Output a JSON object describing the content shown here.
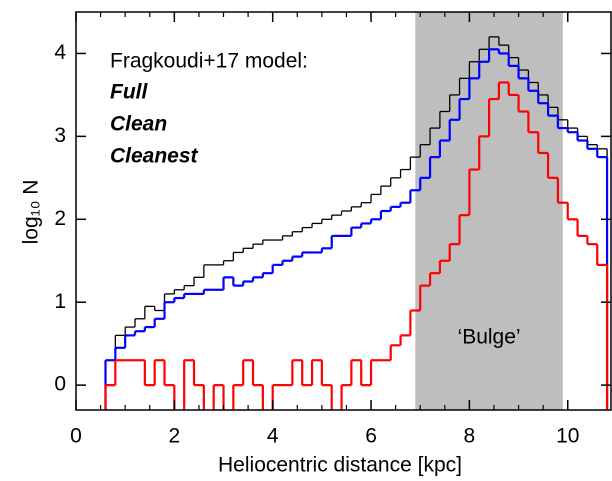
{
  "chart_data": {
    "type": "histogram",
    "x_label": "Heliocentric distance [kpc]",
    "y_label": "log₁₀ N",
    "legend_title": "Fragkoudi+17 model:",
    "legend": "upper left",
    "bins": [
      0.6,
      0.8,
      1.0,
      1.2,
      1.4,
      1.6,
      1.8,
      2.0,
      2.2,
      2.4,
      2.6,
      2.8,
      3.0,
      3.2,
      3.4,
      3.6,
      3.8,
      4.0,
      4.2,
      4.4,
      4.6,
      4.8,
      5.0,
      5.2,
      5.4,
      5.6,
      5.8,
      6.0,
      6.2,
      6.4,
      6.6,
      6.8,
      7.0,
      7.2,
      7.4,
      7.6,
      7.8,
      8.0,
      8.2,
      8.4,
      8.6,
      8.8,
      9.0,
      9.2,
      9.4,
      9.6,
      9.8,
      10.0,
      10.2,
      10.4,
      10.6,
      10.8
    ],
    "series": [
      {
        "name": "Full",
        "color": "#000000",
        "values": [
          0.3,
          0.6,
          0.7,
          0.8,
          0.95,
          0.9,
          1.1,
          1.15,
          1.2,
          1.3,
          1.45,
          1.45,
          1.5,
          1.6,
          1.65,
          1.7,
          1.75,
          1.75,
          1.8,
          1.85,
          1.9,
          1.95,
          2.0,
          2.05,
          2.1,
          2.15,
          2.2,
          2.3,
          2.4,
          2.5,
          2.6,
          2.75,
          2.9,
          3.1,
          3.3,
          3.5,
          3.7,
          3.9,
          4.05,
          4.2,
          4.1,
          3.95,
          3.8,
          3.65,
          3.5,
          3.35,
          3.2,
          3.1,
          3.0,
          2.9,
          2.85
        ]
      },
      {
        "name": "Clean",
        "color": "#0000ff",
        "values": [
          0.3,
          0.45,
          0.6,
          0.65,
          0.7,
          0.8,
          1.0,
          1.05,
          1.1,
          1.1,
          1.15,
          1.15,
          1.3,
          1.2,
          1.25,
          1.3,
          1.35,
          1.45,
          1.5,
          1.55,
          1.6,
          1.6,
          1.65,
          1.8,
          1.8,
          1.9,
          1.95,
          2.0,
          2.1,
          2.15,
          2.2,
          2.35,
          2.5,
          2.75,
          2.95,
          3.2,
          3.45,
          3.7,
          3.9,
          4.05,
          4.0,
          3.85,
          3.7,
          3.55,
          3.4,
          3.25,
          3.1,
          3.05,
          2.95,
          2.85,
          2.75
        ]
      },
      {
        "name": "Cleanest",
        "color": "#ff0000",
        "values": [
          0,
          0.3,
          0.3,
          0.3,
          0,
          0.3,
          0,
          null,
          0.3,
          0,
          null,
          0,
          null,
          0,
          0.3,
          0,
          null,
          0,
          0,
          0.3,
          0,
          0.3,
          0,
          null,
          0,
          0.3,
          0,
          0.3,
          0.3,
          0.48,
          0.6,
          0.9,
          1.2,
          1.35,
          1.5,
          1.7,
          2.05,
          2.6,
          3.0,
          3.45,
          3.65,
          3.5,
          3.3,
          3.05,
          2.8,
          2.5,
          2.2,
          2.0,
          1.8,
          1.7,
          1.45
        ]
      }
    ],
    "shaded_region": {
      "xlim": [
        6.9,
        9.9
      ],
      "label": "‘Bulge’",
      "color": "#bebebe"
    },
    "xlim": [
      0,
      10.9
    ],
    "xticks": [
      0,
      2,
      4,
      6,
      8,
      10
    ],
    "ylim": [
      -0.3,
      4.5
    ],
    "yticks": [
      0,
      1,
      2,
      3,
      4
    ]
  }
}
